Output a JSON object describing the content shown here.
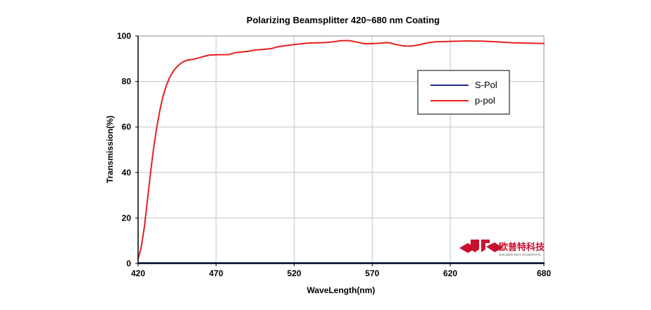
{
  "chart_data": {
    "type": "line",
    "title": "Polarizing Beamsplitter 420~680 nm Coating",
    "xlabel": "WaveLength(nm)",
    "ylabel": "Transmission(%)",
    "xlim": [
      420,
      680
    ],
    "ylim": [
      0,
      100
    ],
    "xticks": [
      420,
      470,
      520,
      570,
      620,
      680
    ],
    "yticks": [
      0,
      20,
      40,
      60,
      80,
      100
    ],
    "grid": true,
    "legend_position": "right",
    "series": [
      {
        "name": "S-Pol",
        "color": "#1f2a8a",
        "x": [
          420,
          680
        ],
        "y": [
          0.2,
          0.2
        ]
      },
      {
        "name": "p-pol",
        "color": "#e81e1e",
        "x": [
          420,
          422,
          424,
          426,
          428,
          430,
          432,
          434,
          436,
          438,
          440,
          443,
          446,
          449,
          452,
          455,
          458,
          462,
          466,
          470,
          478,
          482,
          486,
          490,
          495,
          500,
          505,
          510,
          515,
          520,
          525,
          530,
          535,
          540,
          545,
          550,
          555,
          560,
          565,
          570,
          575,
          580,
          585,
          590,
          595,
          600,
          605,
          610,
          620,
          630,
          640,
          650,
          660,
          670,
          680
        ],
        "y": [
          2,
          7,
          16,
          28,
          40,
          51,
          60,
          67.5,
          73.5,
          78,
          81.5,
          85,
          87.2,
          88.7,
          89.4,
          89.7,
          90.2,
          91,
          91.6,
          91.7,
          91.8,
          92.6,
          92.9,
          93.2,
          93.8,
          94.1,
          94.4,
          95.3,
          95.8,
          96.2,
          96.6,
          96.9,
          97,
          97.1,
          97.4,
          97.9,
          98,
          97.3,
          96.6,
          96.6,
          96.8,
          97.1,
          96.3,
          95.6,
          95.5,
          96.1,
          96.9,
          97.4,
          97.6,
          97.8,
          97.7,
          97.4,
          97,
          96.8,
          96.7
        ]
      }
    ]
  },
  "logo": {
    "name_cn": "欧普特科技",
    "name_en": "GOLDEN WAY SCIENTIFIC",
    "color": "#c8102e"
  }
}
